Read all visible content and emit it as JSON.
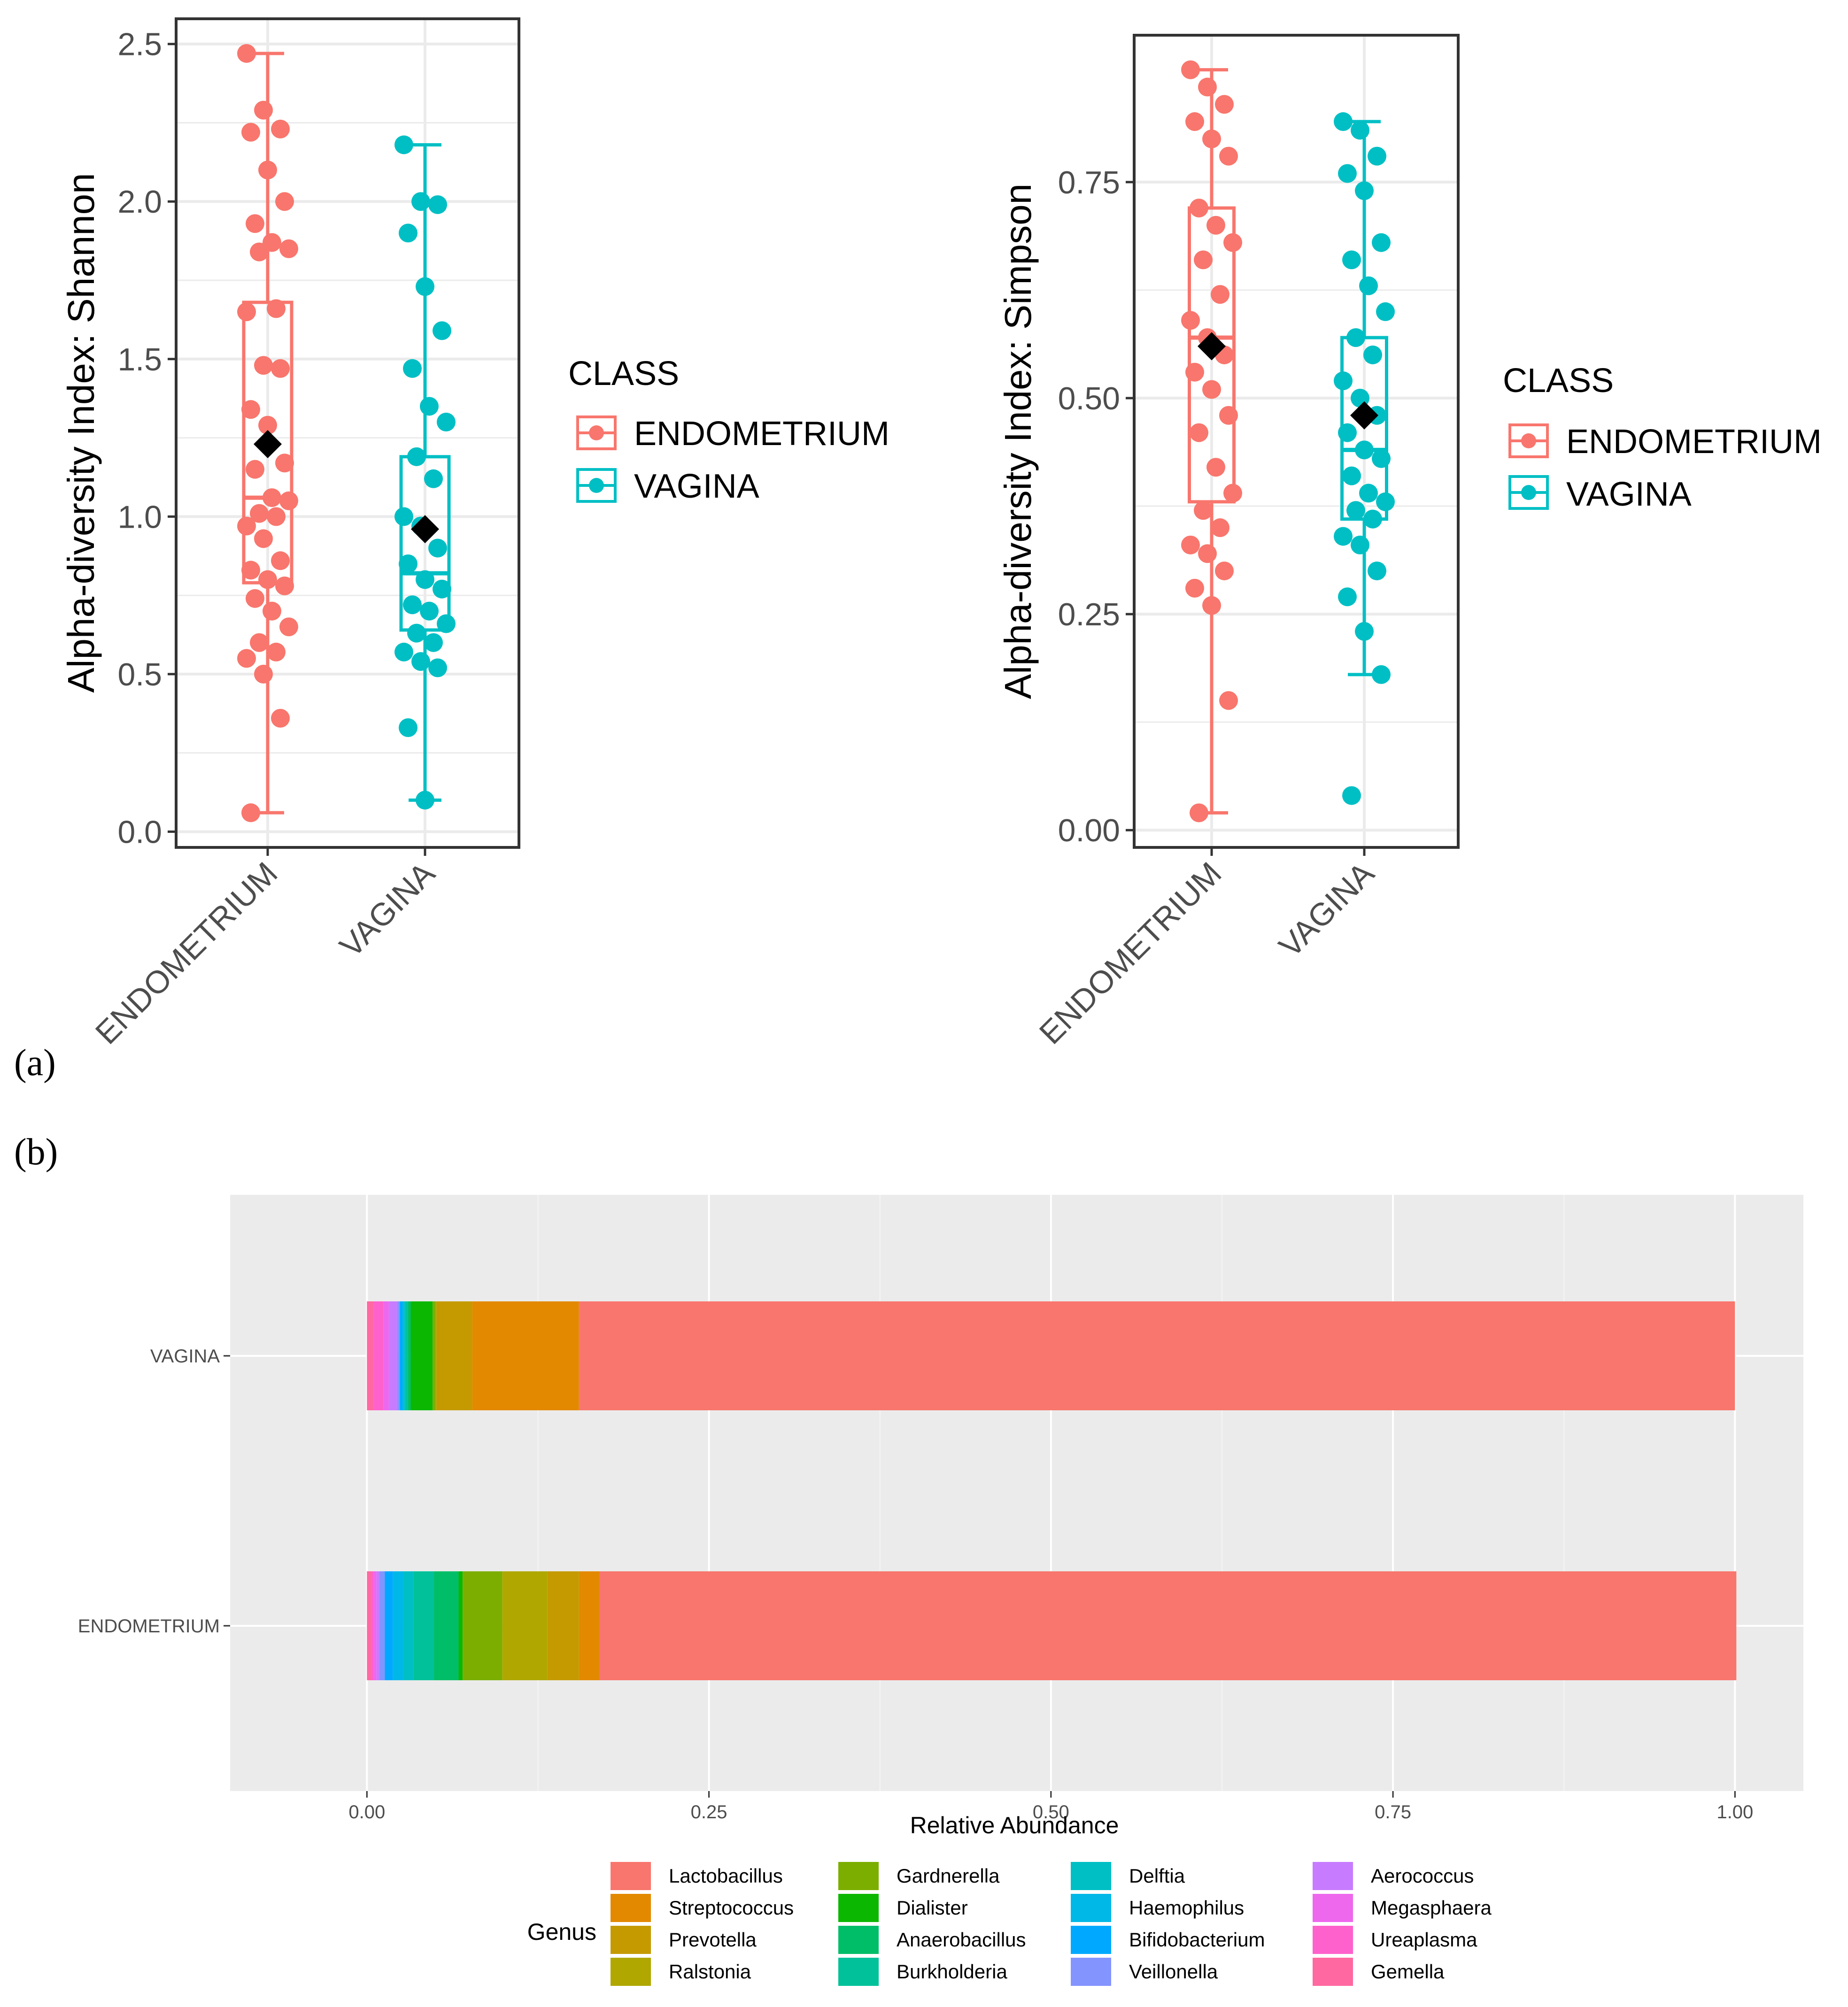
{
  "panels": {
    "a": "(a)",
    "b": "(b)"
  },
  "colors": {
    "endometrium": "#F8766D",
    "vagina": "#00BFC4",
    "mean": "#000000",
    "grid": "#EBEBEB"
  },
  "chart_data": [
    {
      "type": "box",
      "title": "",
      "xlabel": "",
      "ylabel": "Alpha-diversity Index: Shannon",
      "ylim": [
        -0.05,
        2.58
      ],
      "yticks": [
        0.0,
        0.5,
        1.0,
        1.5,
        2.0,
        2.5
      ],
      "ytick_labels": [
        "0.0",
        "0.5",
        "1.0",
        "1.5",
        "2.0",
        "2.5"
      ],
      "categories": [
        "ENDOMETRIUM",
        "VAGINA"
      ],
      "legend": {
        "title": "CLASS",
        "labels": [
          "ENDOMETRIUM",
          "VAGINA"
        ],
        "position": "right"
      },
      "boxes": [
        {
          "group": "ENDOMETRIUM",
          "whisker_low": 0.06,
          "q1": 0.79,
          "median": 1.06,
          "q3": 1.68,
          "whisker_high": 2.47,
          "mean": 1.23,
          "points": [
            2.47,
            2.29,
            2.23,
            2.22,
            2.1,
            2.0,
            1.93,
            1.87,
            1.85,
            1.84,
            1.66,
            1.65,
            1.48,
            1.47,
            1.34,
            1.29,
            1.17,
            1.15,
            1.06,
            1.05,
            1.01,
            1.0,
            0.97,
            0.93,
            0.86,
            0.83,
            0.8,
            0.78,
            0.74,
            0.7,
            0.65,
            0.6,
            0.57,
            0.55,
            0.5,
            0.36,
            0.06
          ]
        },
        {
          "group": "VAGINA",
          "whisker_low": 0.1,
          "q1": 0.64,
          "median": 0.82,
          "q3": 1.19,
          "whisker_high": 2.18,
          "mean": 0.96,
          "points": [
            2.18,
            2.0,
            1.99,
            1.9,
            1.73,
            1.59,
            1.47,
            1.35,
            1.3,
            1.19,
            1.12,
            1.0,
            0.97,
            0.9,
            0.85,
            0.8,
            0.77,
            0.72,
            0.7,
            0.66,
            0.63,
            0.6,
            0.57,
            0.54,
            0.52,
            0.33,
            0.1
          ]
        }
      ]
    },
    {
      "type": "box",
      "title": "",
      "xlabel": "",
      "ylabel": "Alpha-diversity Index: Simpson",
      "ylim": [
        -0.02,
        0.92
      ],
      "yticks": [
        0.0,
        0.25,
        0.5,
        0.75
      ],
      "ytick_labels": [
        "0.00",
        "0.25",
        "0.50",
        "0.75"
      ],
      "categories": [
        "ENDOMETRIUM",
        "VAGINA"
      ],
      "legend": {
        "title": "CLASS",
        "labels": [
          "ENDOMETRIUM",
          "VAGINA"
        ],
        "position": "right"
      },
      "boxes": [
        {
          "group": "ENDOMETRIUM",
          "whisker_low": 0.02,
          "q1": 0.38,
          "median": 0.57,
          "q3": 0.72,
          "whisker_high": 0.88,
          "mean": 0.56,
          "points": [
            0.88,
            0.86,
            0.84,
            0.82,
            0.8,
            0.78,
            0.72,
            0.7,
            0.68,
            0.66,
            0.62,
            0.59,
            0.57,
            0.55,
            0.53,
            0.51,
            0.48,
            0.46,
            0.42,
            0.39,
            0.37,
            0.35,
            0.33,
            0.32,
            0.3,
            0.28,
            0.26,
            0.15,
            0.02
          ]
        },
        {
          "group": "VAGINA",
          "whisker_low": 0.18,
          "q1": 0.36,
          "median": 0.44,
          "q3": 0.57,
          "whisker_high": 0.82,
          "mean": 0.48,
          "points": [
            0.82,
            0.81,
            0.78,
            0.76,
            0.74,
            0.68,
            0.66,
            0.63,
            0.6,
            0.57,
            0.55,
            0.52,
            0.5,
            0.48,
            0.46,
            0.44,
            0.43,
            0.41,
            0.39,
            0.38,
            0.37,
            0.36,
            0.34,
            0.33,
            0.3,
            0.27,
            0.23,
            0.18,
            0.04
          ]
        }
      ]
    },
    {
      "type": "stacked-bar-horizontal",
      "title": "",
      "xlabel": "Relative Abundance",
      "ylabel": "",
      "xlim": [
        -0.1,
        1.05
      ],
      "xticks": [
        0.0,
        0.25,
        0.5,
        0.75,
        1.0
      ],
      "xtick_labels": [
        "0.00",
        "0.25",
        "0.50",
        "0.75",
        "1.00"
      ],
      "categories": [
        "VAGINA",
        "ENDOMETRIUM"
      ],
      "legend": {
        "title": "Genus",
        "position": "bottom",
        "columns": [
          [
            "Lactobacillus",
            "Streptococcus",
            "Prevotella",
            "Ralstonia"
          ],
          [
            "Gardnerella",
            "Dialister",
            "Anaerobacillus",
            "Burkholderia"
          ],
          [
            "Delftia",
            "Haemophilus",
            "Bifidobacterium",
            "Veillonella"
          ],
          [
            "Aerococcus",
            "Megasphaera",
            "Ureaplasma",
            "Gemella"
          ]
        ]
      },
      "genus_colors": {
        "Lactobacillus": "#F8766D",
        "Streptococcus": "#E38900",
        "Prevotella": "#C49A00",
        "Ralstonia": "#B0A800",
        "Gardnerella": "#7CAE00",
        "Dialister": "#0CB702",
        "Anaerobacillus": "#00BE67",
        "Burkholderia": "#00C19A",
        "Delftia": "#00BFC4",
        "Haemophilus": "#00B8E7",
        "Bifidobacterium": "#00A9FF",
        "Veillonella": "#8494FF",
        "Aerococcus": "#C77CFF",
        "Megasphaera": "#ED68ED",
        "Ureaplasma": "#FF61CC",
        "Gemella": "#FF68A1"
      },
      "series": [
        {
          "name": "Gemella",
          "values": [
            0.005,
            0.003
          ]
        },
        {
          "name": "Ureaplasma",
          "values": [
            0.007,
            0.002
          ]
        },
        {
          "name": "Megasphaera",
          "values": [
            0.004,
            0.002
          ]
        },
        {
          "name": "Aerococcus",
          "values": [
            0.006,
            0.002
          ]
        },
        {
          "name": "Veillonella",
          "values": [
            0.002,
            0.004
          ]
        },
        {
          "name": "Bifidobacterium",
          "values": [
            0.002,
            0.006
          ]
        },
        {
          "name": "Haemophilus",
          "values": [
            0.001,
            0.008
          ]
        },
        {
          "name": "Delftia",
          "values": [
            0.001,
            0.007
          ]
        },
        {
          "name": "Burkholderia",
          "values": [
            0.002,
            0.015
          ]
        },
        {
          "name": "Anaerobacillus",
          "values": [
            0.002,
            0.018
          ]
        },
        {
          "name": "Dialister",
          "values": [
            0.016,
            0.003
          ]
        },
        {
          "name": "Gardnerella",
          "values": [
            0.002,
            0.029
          ]
        },
        {
          "name": "Ralstonia",
          "values": [
            0.001,
            0.033
          ]
        },
        {
          "name": "Prevotella",
          "values": [
            0.026,
            0.023
          ]
        },
        {
          "name": "Streptococcus",
          "values": [
            0.078,
            0.015
          ]
        },
        {
          "name": "Lactobacillus",
          "values": [
            0.845,
            0.831
          ]
        }
      ]
    }
  ]
}
